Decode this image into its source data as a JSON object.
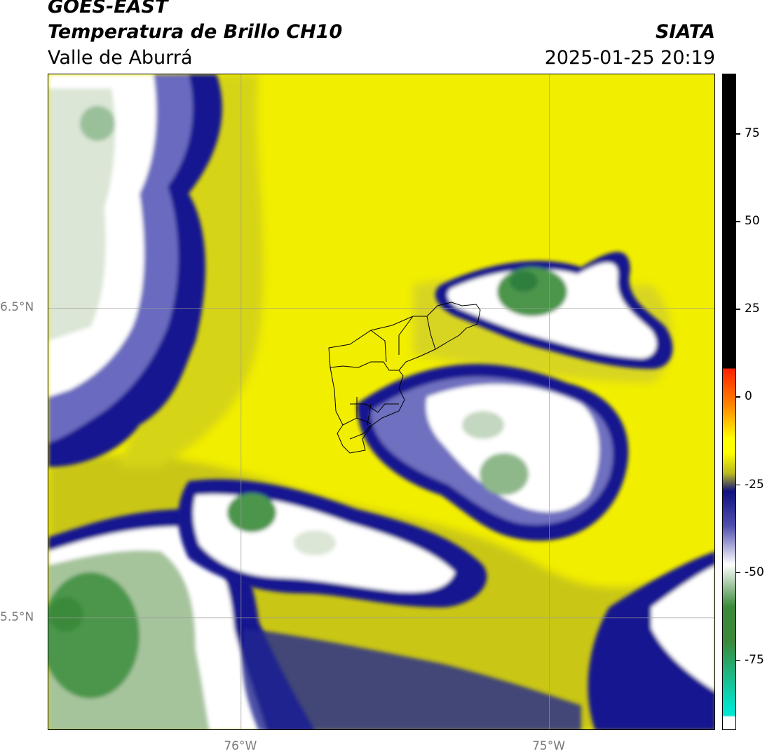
{
  "header": {
    "satellite": "GOES-EAST",
    "product": "Temperatura de Brillo CH10",
    "region": "Valle de Aburrá",
    "source": "SIATA",
    "timestamp": "2025-01-25 20:19"
  },
  "map": {
    "lat_ticks": [
      {
        "value": 6.5,
        "label": "6.5°N"
      },
      {
        "value": 5.5,
        "label": "5.5°N"
      }
    ],
    "lon_ticks": [
      {
        "value": -76.0,
        "label": "76°W"
      },
      {
        "value": -75.0,
        "label": "75°W"
      }
    ],
    "extent": {
      "lon_min": -76.625,
      "lon_max": -74.46,
      "lat_min": 5.135,
      "lat_max": 7.255
    }
  },
  "colorbar": {
    "ticks": [
      {
        "value": 75,
        "label": "75"
      },
      {
        "value": 50,
        "label": "50"
      },
      {
        "value": 25,
        "label": "25"
      },
      {
        "value": 0,
        "label": "0"
      },
      {
        "value": -25,
        "label": "-25"
      },
      {
        "value": -50,
        "label": "-50"
      },
      {
        "value": -75,
        "label": "-75"
      }
    ],
    "range": [
      -95,
      92
    ],
    "colors": {
      "black": "#000000",
      "red": "#ff2000",
      "orange": "#ff8c00",
      "yellow": "#ffff00",
      "olive": "#b8b820",
      "navy": "#101080",
      "blue": "#5050b0",
      "white": "#ffffff",
      "green": "#3a8a3a",
      "cyan": "#00e5d0"
    }
  }
}
